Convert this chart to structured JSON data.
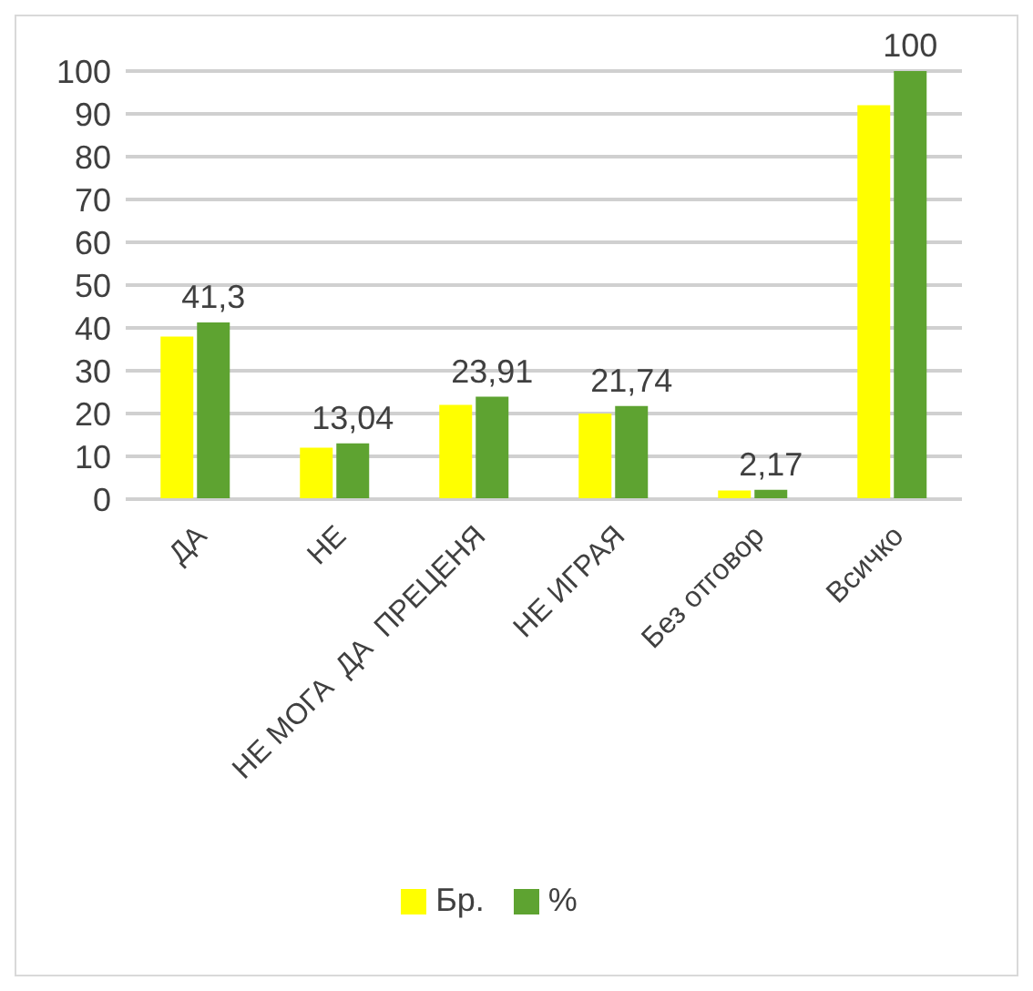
{
  "chart_data": {
    "type": "bar",
    "categories": [
      "ДА",
      "НЕ",
      "НЕ МОГА  ДА  ПРЕЦЕНЯ",
      "НЕ ИГРАЯ",
      "Без отговор",
      "Всичко"
    ],
    "series": [
      {
        "name": "Бр.",
        "color": "#ffff00",
        "values": [
          38,
          12,
          22,
          20,
          2,
          92
        ]
      },
      {
        "name": "%",
        "color": "#5ea331",
        "values": [
          41.3,
          13.04,
          23.91,
          21.74,
          2.17,
          100
        ],
        "value_labels": [
          "41,3",
          "13,04",
          "23,91",
          "21,74",
          "2,17",
          "100"
        ]
      }
    ],
    "ylim": [
      0,
      100
    ],
    "yticks": [
      0,
      10,
      20,
      30,
      40,
      50,
      60,
      70,
      80,
      90,
      100
    ],
    "grid": "y",
    "legend": "bottom"
  }
}
